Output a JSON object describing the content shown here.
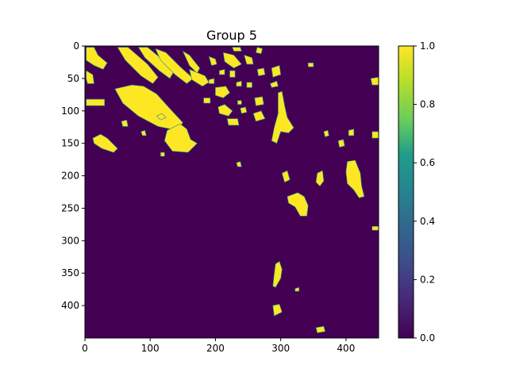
{
  "chart_data": {
    "type": "heatmap",
    "title": "Group 5",
    "xlabel": "",
    "ylabel": "",
    "xlim": [
      0,
      450
    ],
    "ylim": [
      450,
      0
    ],
    "x_ticks": [
      0,
      100,
      200,
      300,
      400
    ],
    "y_ticks": [
      0,
      50,
      100,
      150,
      200,
      250,
      300,
      350,
      400
    ],
    "colorbar": {
      "range": [
        0.0,
        1.0
      ],
      "ticks": [
        "0.0",
        "0.2",
        "0.4",
        "0.6",
        "0.8",
        "1.0"
      ],
      "colormap": "viridis"
    },
    "background_value": 0.0,
    "highlight_value": 1.0,
    "colors": {
      "low": "#440154",
      "high": "#fde725",
      "mid": "#21918c"
    },
    "regions_value_1": [
      {
        "id": "diag-band-a",
        "points": [
          [
            2,
            2
          ],
          [
            14,
            2
          ],
          [
            20,
            14
          ],
          [
            34,
            26
          ],
          [
            28,
            36
          ],
          [
            14,
            30
          ],
          [
            2,
            22
          ]
        ]
      },
      {
        "id": "diag-band-b",
        "points": [
          [
            50,
            2
          ],
          [
            66,
            2
          ],
          [
            96,
            28
          ],
          [
            112,
            48
          ],
          [
            104,
            58
          ],
          [
            86,
            46
          ],
          [
            62,
            22
          ]
        ]
      },
      {
        "id": "diag-band-c",
        "points": [
          [
            82,
            2
          ],
          [
            96,
            2
          ],
          [
            120,
            22
          ],
          [
            136,
            40
          ],
          [
            130,
            50
          ],
          [
            114,
            38
          ],
          [
            92,
            18
          ]
        ]
      },
      {
        "id": "diag-band-d",
        "points": [
          [
            108,
            4
          ],
          [
            124,
            10
          ],
          [
            146,
            32
          ],
          [
            166,
            50
          ],
          [
            156,
            58
          ],
          [
            138,
            44
          ],
          [
            116,
            22
          ]
        ]
      },
      {
        "id": "diag-band-e",
        "points": [
          [
            150,
            8
          ],
          [
            160,
            14
          ],
          [
            176,
            34
          ],
          [
            172,
            42
          ],
          [
            160,
            30
          ]
        ]
      },
      {
        "id": "diag-band-f",
        "points": [
          [
            160,
            36
          ],
          [
            184,
            46
          ],
          [
            190,
            56
          ],
          [
            180,
            62
          ],
          [
            164,
            52
          ]
        ]
      },
      {
        "id": "left-blob",
        "points": [
          [
            2,
            38
          ],
          [
            12,
            44
          ],
          [
            14,
            58
          ],
          [
            4,
            58
          ],
          [
            2,
            50
          ]
        ]
      },
      {
        "id": "left-bar",
        "points": [
          [
            2,
            82
          ],
          [
            30,
            82
          ],
          [
            30,
            92
          ],
          [
            2,
            92
          ]
        ]
      },
      {
        "id": "center-slab",
        "points": [
          [
            46,
            66
          ],
          [
            72,
            60
          ],
          [
            90,
            62
          ],
          [
            110,
            74
          ],
          [
            128,
            94
          ],
          [
            150,
            118
          ],
          [
            142,
            130
          ],
          [
            112,
            124
          ],
          [
            82,
            108
          ],
          [
            58,
            88
          ]
        ]
      },
      {
        "id": "lower-left-blob",
        "points": [
          [
            12,
            142
          ],
          [
            24,
            136
          ],
          [
            34,
            142
          ],
          [
            50,
            158
          ],
          [
            44,
            164
          ],
          [
            26,
            158
          ],
          [
            14,
            150
          ]
        ]
      },
      {
        "id": "lower-center-slab",
        "points": [
          [
            126,
            130
          ],
          [
            146,
            120
          ],
          [
            156,
            128
          ],
          [
            162,
            144
          ],
          [
            172,
            150
          ],
          [
            158,
            164
          ],
          [
            134,
            162
          ],
          [
            122,
            146
          ]
        ]
      },
      {
        "id": "small-1",
        "points": [
          [
            110,
            108
          ],
          [
            118,
            104
          ],
          [
            124,
            110
          ],
          [
            116,
            114
          ]
        ]
      },
      {
        "id": "small-2",
        "points": [
          [
            56,
            116
          ],
          [
            64,
            114
          ],
          [
            66,
            124
          ],
          [
            58,
            124
          ]
        ]
      },
      {
        "id": "small-3",
        "points": [
          [
            86,
            132
          ],
          [
            92,
            130
          ],
          [
            94,
            138
          ],
          [
            88,
            138
          ]
        ]
      },
      {
        "id": "small-4",
        "points": [
          [
            116,
            164
          ],
          [
            122,
            164
          ],
          [
            122,
            170
          ],
          [
            116,
            170
          ]
        ]
      },
      {
        "id": "mid-top-1",
        "points": [
          [
            190,
            16
          ],
          [
            200,
            20
          ],
          [
            202,
            28
          ],
          [
            194,
            30
          ]
        ]
      },
      {
        "id": "mid-top-2",
        "points": [
          [
            212,
            10
          ],
          [
            228,
            14
          ],
          [
            240,
            28
          ],
          [
            228,
            34
          ],
          [
            214,
            24
          ]
        ]
      },
      {
        "id": "mid-top-3",
        "points": [
          [
            244,
            14
          ],
          [
            256,
            18
          ],
          [
            258,
            28
          ],
          [
            248,
            28
          ]
        ]
      },
      {
        "id": "mid-top-4",
        "points": [
          [
            264,
            2
          ],
          [
            272,
            4
          ],
          [
            270,
            12
          ],
          [
            262,
            10
          ]
        ]
      },
      {
        "id": "mid-top-5",
        "points": [
          [
            226,
            2
          ],
          [
            238,
            2
          ],
          [
            240,
            8
          ],
          [
            228,
            8
          ]
        ]
      },
      {
        "id": "mid-top-6",
        "points": [
          [
            190,
            52
          ],
          [
            198,
            50
          ],
          [
            198,
            58
          ],
          [
            190,
            58
          ]
        ]
      },
      {
        "id": "mid-top-7",
        "points": [
          [
            206,
            38
          ],
          [
            214,
            36
          ],
          [
            214,
            44
          ],
          [
            206,
            44
          ]
        ]
      },
      {
        "id": "mid-top-8",
        "points": [
          [
            222,
            38
          ],
          [
            230,
            38
          ],
          [
            230,
            48
          ],
          [
            222,
            48
          ]
        ]
      },
      {
        "id": "mid-top-9",
        "points": [
          [
            264,
            36
          ],
          [
            274,
            34
          ],
          [
            276,
            44
          ],
          [
            266,
            46
          ]
        ]
      },
      {
        "id": "mid-ring",
        "points": [
          [
            200,
            64
          ],
          [
            216,
            62
          ],
          [
            222,
            72
          ],
          [
            212,
            80
          ],
          [
            200,
            76
          ]
        ]
      },
      {
        "id": "mid-left-small",
        "points": [
          [
            182,
            80
          ],
          [
            192,
            80
          ],
          [
            192,
            88
          ],
          [
            182,
            88
          ]
        ]
      },
      {
        "id": "mid-small-a",
        "points": [
          [
            232,
            56
          ],
          [
            240,
            54
          ],
          [
            240,
            62
          ],
          [
            232,
            62
          ]
        ]
      },
      {
        "id": "mid-small-b",
        "points": [
          [
            248,
            56
          ],
          [
            256,
            56
          ],
          [
            256,
            64
          ],
          [
            248,
            64
          ]
        ]
      },
      {
        "id": "mid-lower-a",
        "points": [
          [
            204,
            94
          ],
          [
            214,
            90
          ],
          [
            226,
            100
          ],
          [
            220,
            108
          ],
          [
            206,
            104
          ]
        ]
      },
      {
        "id": "mid-lower-b",
        "points": [
          [
            238,
            96
          ],
          [
            246,
            94
          ],
          [
            248,
            102
          ],
          [
            240,
            104
          ]
        ]
      },
      {
        "id": "mid-lower-c",
        "points": [
          [
            260,
            80
          ],
          [
            272,
            78
          ],
          [
            274,
            90
          ],
          [
            262,
            92
          ]
        ]
      },
      {
        "id": "mid-center-dot",
        "points": [
          [
            234,
            84
          ],
          [
            240,
            84
          ],
          [
            240,
            90
          ],
          [
            234,
            90
          ]
        ]
      },
      {
        "id": "mid-bar-1",
        "points": [
          [
            218,
            112
          ],
          [
            234,
            112
          ],
          [
            236,
            122
          ],
          [
            220,
            122
          ]
        ]
      },
      {
        "id": "mid-bar-2",
        "points": [
          [
            258,
            104
          ],
          [
            270,
            100
          ],
          [
            276,
            112
          ],
          [
            262,
            116
          ]
        ]
      },
      {
        "id": "mid-right-1",
        "points": [
          [
            286,
            34
          ],
          [
            298,
            30
          ],
          [
            300,
            44
          ],
          [
            288,
            48
          ]
        ]
      },
      {
        "id": "mid-right-2",
        "points": [
          [
            284,
            58
          ],
          [
            294,
            54
          ],
          [
            296,
            62
          ],
          [
            286,
            64
          ]
        ]
      },
      {
        "id": "center-vertical",
        "points": [
          [
            296,
            72
          ],
          [
            302,
            70
          ],
          [
            306,
            92
          ],
          [
            310,
            110
          ],
          [
            320,
            126
          ],
          [
            312,
            134
          ],
          [
            300,
            132
          ],
          [
            294,
            150
          ],
          [
            286,
            146
          ],
          [
            290,
            126
          ],
          [
            296,
            104
          ]
        ]
      },
      {
        "id": "center-right-dot",
        "points": [
          [
            342,
            26
          ],
          [
            350,
            26
          ],
          [
            350,
            32
          ],
          [
            342,
            32
          ]
        ]
      },
      {
        "id": "right-edge-top",
        "points": [
          [
            438,
            50
          ],
          [
            450,
            48
          ],
          [
            450,
            60
          ],
          [
            440,
            60
          ]
        ]
      },
      {
        "id": "right-blob-1",
        "points": [
          [
            366,
            132
          ],
          [
            372,
            130
          ],
          [
            374,
            138
          ],
          [
            368,
            140
          ]
        ]
      },
      {
        "id": "right-blob-2",
        "points": [
          [
            388,
            146
          ],
          [
            396,
            144
          ],
          [
            398,
            154
          ],
          [
            390,
            156
          ]
        ]
      },
      {
        "id": "right-blob-3",
        "points": [
          [
            404,
            130
          ],
          [
            412,
            128
          ],
          [
            412,
            138
          ],
          [
            404,
            138
          ]
        ]
      },
      {
        "id": "right-edge-mid",
        "points": [
          [
            440,
            132
          ],
          [
            450,
            132
          ],
          [
            450,
            142
          ],
          [
            440,
            142
          ]
        ]
      },
      {
        "id": "right-tall",
        "points": [
          [
            402,
            178
          ],
          [
            414,
            176
          ],
          [
            422,
            196
          ],
          [
            424,
            216
          ],
          [
            428,
            232
          ],
          [
            420,
            234
          ],
          [
            412,
            222
          ],
          [
            402,
            212
          ],
          [
            400,
            194
          ]
        ]
      },
      {
        "id": "mid-small-c",
        "points": [
          [
            232,
            180
          ],
          [
            238,
            178
          ],
          [
            240,
            186
          ],
          [
            234,
            186
          ]
        ]
      },
      {
        "id": "right-mid-1",
        "points": [
          [
            302,
            196
          ],
          [
            310,
            192
          ],
          [
            314,
            206
          ],
          [
            306,
            210
          ]
        ]
      },
      {
        "id": "right-mid-2",
        "points": [
          [
            356,
            196
          ],
          [
            364,
            192
          ],
          [
            366,
            208
          ],
          [
            360,
            216
          ],
          [
            354,
            210
          ]
        ]
      },
      {
        "id": "right-big",
        "points": [
          [
            310,
            232
          ],
          [
            326,
            226
          ],
          [
            336,
            232
          ],
          [
            342,
            246
          ],
          [
            340,
            262
          ],
          [
            330,
            262
          ],
          [
            322,
            248
          ],
          [
            312,
            242
          ]
        ]
      },
      {
        "id": "right-edge-low",
        "points": [
          [
            440,
            278
          ],
          [
            450,
            278
          ],
          [
            450,
            284
          ],
          [
            440,
            284
          ]
        ]
      },
      {
        "id": "low-vertical",
        "points": [
          [
            292,
            336
          ],
          [
            298,
            332
          ],
          [
            302,
            344
          ],
          [
            300,
            358
          ],
          [
            292,
            372
          ],
          [
            288,
            370
          ],
          [
            290,
            352
          ]
        ]
      },
      {
        "id": "low-blob",
        "points": [
          [
            288,
            400
          ],
          [
            298,
            398
          ],
          [
            302,
            410
          ],
          [
            290,
            416
          ]
        ]
      },
      {
        "id": "bottom-blob",
        "points": [
          [
            354,
            434
          ],
          [
            366,
            432
          ],
          [
            368,
            440
          ],
          [
            356,
            442
          ]
        ]
      },
      {
        "id": "low-small",
        "points": [
          [
            322,
            374
          ],
          [
            328,
            372
          ],
          [
            328,
            378
          ],
          [
            322,
            378
          ]
        ]
      }
    ]
  }
}
